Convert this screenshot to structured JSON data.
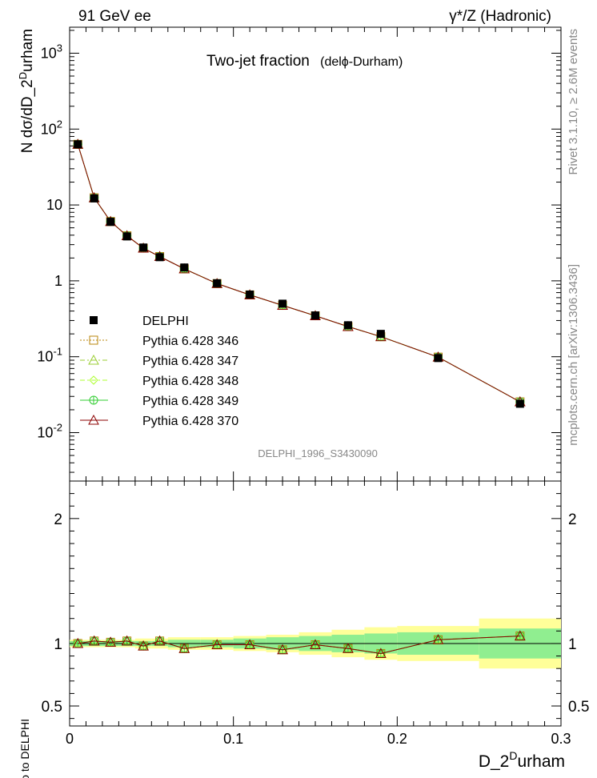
{
  "header": {
    "left": "91 GeV ee",
    "right": "γ*/Z (Hadronic)"
  },
  "side": {
    "rivet": "Rivet 3.1.10, ≥ 2.6M events",
    "mcplots": "mcplots.cern.ch [arXiv:1306.3436]"
  },
  "chart_data": {
    "type": "scatter",
    "title": "Two-jet fraction",
    "subtitle": "(delϕ-Durham)",
    "watermark": "DELPHI_1996_S3430090",
    "xlabel": "D_2Durham",
    "xlabel_parts": {
      "base": "D_2",
      "sup": "D",
      "rest": "urham"
    },
    "ylabel": "N dσ/dD_2Durham",
    "ylabel_parts": {
      "base": "N dσ/dD_2",
      "sup": "D",
      "rest": "urham"
    },
    "ratio_ylabel": "Ratio to DELPHI",
    "xlim": [
      0,
      0.3
    ],
    "ylim": [
      0.0023,
      2200
    ],
    "ylog": true,
    "ratio_ylim": [
      0.34,
      2.3
    ],
    "x_ticks": [
      "0",
      "0.1",
      "0.2",
      "0.3"
    ],
    "y_ticks": [
      "10^-2",
      "10^-1",
      "1",
      "10",
      "10^2",
      "10^3"
    ],
    "ratio_ticks": [
      "0.5",
      "1",
      "2"
    ],
    "legend_position": "middle-left",
    "colors": {
      "data": "#000000",
      "p346": "#b8860b",
      "p347": "#9acd32",
      "p348": "#adff2f",
      "p349": "#32cd32",
      "p370": "#8b0000",
      "band_inner": "#90ee90",
      "band_outer": "#ffff99"
    },
    "bins": [
      [
        0.0,
        0.01
      ],
      [
        0.01,
        0.02
      ],
      [
        0.02,
        0.03
      ],
      [
        0.03,
        0.04
      ],
      [
        0.04,
        0.05
      ],
      [
        0.05,
        0.06
      ],
      [
        0.06,
        0.08
      ],
      [
        0.08,
        0.1
      ],
      [
        0.1,
        0.12
      ],
      [
        0.12,
        0.14
      ],
      [
        0.14,
        0.16
      ],
      [
        0.16,
        0.18
      ],
      [
        0.18,
        0.2
      ],
      [
        0.2,
        0.25
      ],
      [
        0.25,
        0.3
      ]
    ],
    "x": [
      0.005,
      0.015,
      0.025,
      0.035,
      0.045,
      0.055,
      0.07,
      0.09,
      0.11,
      0.13,
      0.15,
      0.17,
      0.19,
      0.225,
      0.275
    ],
    "data": {
      "name": "DELPHI",
      "values": [
        63,
        12.2,
        6.0,
        3.85,
        2.75,
        2.05,
        1.5,
        0.93,
        0.66,
        0.5,
        0.35,
        0.26,
        0.2,
        0.096,
        0.024
      ],
      "ratio_inner": [
        0.02,
        0.02,
        0.02,
        0.02,
        0.02,
        0.02,
        0.03,
        0.03,
        0.04,
        0.05,
        0.06,
        0.07,
        0.08,
        0.09,
        0.12
      ],
      "ratio_outer": [
        0.03,
        0.03,
        0.03,
        0.03,
        0.04,
        0.04,
        0.05,
        0.05,
        0.06,
        0.07,
        0.09,
        0.11,
        0.13,
        0.14,
        0.2
      ]
    },
    "series": [
      {
        "name": "Pythia 6.428 346",
        "style": "dotted",
        "marker": "square",
        "ratio": [
          1.0,
          1.02,
          1.01,
          1.02,
          0.98,
          1.02,
          0.96,
          0.99,
          0.99,
          0.95,
          0.99,
          0.96,
          0.92,
          1.03,
          1.06
        ]
      },
      {
        "name": "Pythia 6.428 347",
        "style": "dashdot",
        "marker": "triangle",
        "ratio": [
          1.0,
          1.02,
          1.01,
          1.02,
          0.98,
          1.02,
          0.96,
          0.99,
          0.99,
          0.95,
          0.99,
          0.96,
          0.92,
          1.03,
          1.06
        ]
      },
      {
        "name": "Pythia 6.428 348",
        "style": "dashdot",
        "marker": "diamond",
        "ratio": [
          1.0,
          1.02,
          1.01,
          1.02,
          0.98,
          1.02,
          0.96,
          0.99,
          0.99,
          0.95,
          0.99,
          0.96,
          0.92,
          1.03,
          1.06
        ]
      },
      {
        "name": "Pythia 6.428 349",
        "style": "solid",
        "marker": "circle-plus",
        "ratio": [
          1.0,
          1.02,
          1.01,
          1.02,
          0.98,
          1.02,
          0.96,
          0.99,
          0.99,
          0.95,
          0.99,
          0.96,
          0.92,
          1.03,
          1.06
        ]
      },
      {
        "name": "Pythia 6.428 370",
        "style": "solid",
        "marker": "triangle",
        "ratio": [
          1.0,
          1.02,
          1.01,
          1.02,
          0.98,
          1.02,
          0.96,
          0.99,
          0.99,
          0.95,
          0.99,
          0.96,
          0.92,
          1.03,
          1.06
        ]
      }
    ]
  }
}
